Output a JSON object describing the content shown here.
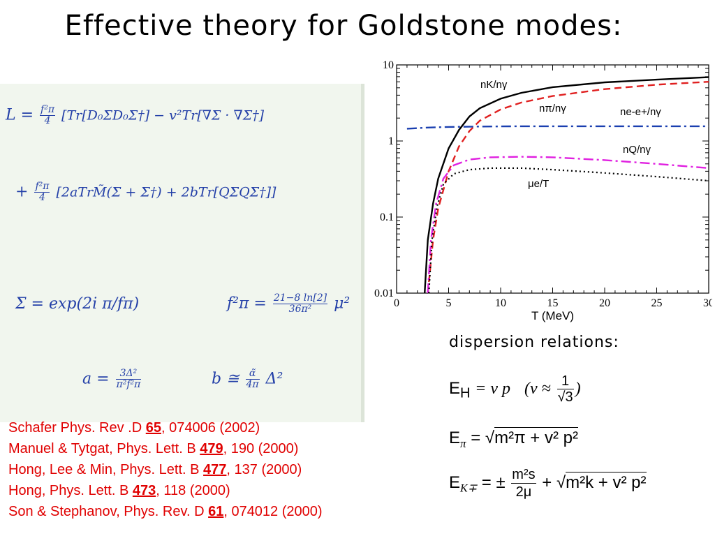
{
  "title": "Effective theory for Goldstone modes:",
  "equations": {
    "L_eq": "L =",
    "L_frac_num": "f²π",
    "L_frac_den": "4",
    "L_line1": "[Tr[D₀ΣD₀Σ†] − v²Tr[∇Σ · ∇Σ†]",
    "L_line2_prefix": "+",
    "L_line2": "[2aTrM̃(Σ + Σ†) + 2bTr[QΣQΣ†]]",
    "sigma": "Σ = exp(2i π/fπ)",
    "fpi_lhs": "f²π =",
    "fpi_num": "21−8 ln[2]",
    "fpi_den": "36π²",
    "fpi_tail": "μ²",
    "a_lhs": "a =",
    "a_num": "3Δ²",
    "a_den": "π²f²π",
    "b_lhs": "b ≅",
    "b_num": "α̃",
    "b_den": "4π",
    "b_tail": "Δ²"
  },
  "references": [
    {
      "pre": "Schafer Phys. Rev .D ",
      "vol": "65",
      "post": ", 074006 (2002)"
    },
    {
      "pre": "Manuel & Tytgat, Phys. Lett. B ",
      "vol": "479",
      "post": ", 190 (2000)"
    },
    {
      "pre": "Hong, Lee & Min, Phys. Lett. B ",
      "vol": "477",
      "post": ", 137 (2000)"
    },
    {
      "pre": "Hong, Phys. Lett. B ",
      "vol": "473",
      "post": ", 118 (2000)"
    },
    {
      "pre": "Son & Stephanov, Phys. Rev. D ",
      "vol": "61",
      "post": ", 074012 (2000)"
    }
  ],
  "chart_data": {
    "type": "line",
    "xlabel": "T (MeV)",
    "ylabel": "",
    "xlim": [
      0,
      30
    ],
    "ylim": [
      0.01,
      10
    ],
    "yscale": "log",
    "x_ticks": [
      "0",
      "5",
      "10",
      "15",
      "20",
      "25",
      "30"
    ],
    "y_ticks": [
      "0.01",
      "0.1",
      "1",
      "10"
    ],
    "series": [
      {
        "name": "n_K/n_γ",
        "label": "nK/nγ",
        "color": "#000000",
        "dash": "solid",
        "points": [
          [
            2.7,
            0.01
          ],
          [
            3.0,
            0.05
          ],
          [
            3.5,
            0.15
          ],
          [
            4.0,
            0.32
          ],
          [
            5.0,
            0.8
          ],
          [
            6.0,
            1.4
          ],
          [
            7.0,
            2.1
          ],
          [
            8.0,
            2.7
          ],
          [
            10.0,
            3.6
          ],
          [
            12.0,
            4.3
          ],
          [
            15.0,
            5.1
          ],
          [
            20.0,
            5.9
          ],
          [
            25.0,
            6.4
          ],
          [
            30.0,
            6.9
          ]
        ]
      },
      {
        "name": "n_π/n_γ",
        "label": "nπ/nγ",
        "color": "#e02020",
        "dash": "dashed",
        "points": [
          [
            3.0,
            0.01
          ],
          [
            3.5,
            0.05
          ],
          [
            4.0,
            0.13
          ],
          [
            5.0,
            0.4
          ],
          [
            6.0,
            0.85
          ],
          [
            7.0,
            1.35
          ],
          [
            8.0,
            1.85
          ],
          [
            10.0,
            2.6
          ],
          [
            12.0,
            3.2
          ],
          [
            15.0,
            3.9
          ],
          [
            20.0,
            4.8
          ],
          [
            25.0,
            5.5
          ],
          [
            30.0,
            6.0
          ]
        ]
      },
      {
        "name": "n_e-e+/n_γ",
        "label": "ne-e+/nγ",
        "color": "#1a3fb0",
        "dash": "dashdot",
        "points": [
          [
            1.0,
            1.45
          ],
          [
            3.0,
            1.5
          ],
          [
            5.0,
            1.53
          ],
          [
            8.0,
            1.55
          ],
          [
            12.0,
            1.56
          ],
          [
            20.0,
            1.56
          ],
          [
            30.0,
            1.56
          ]
        ]
      },
      {
        "name": "n_Q/n_γ",
        "label": "nQ/nγ",
        "color": "#e020e0",
        "dash": "dashdot",
        "points": [
          [
            3.0,
            0.01
          ],
          [
            3.3,
            0.05
          ],
          [
            3.8,
            0.15
          ],
          [
            4.5,
            0.32
          ],
          [
            5.5,
            0.48
          ],
          [
            7.0,
            0.57
          ],
          [
            9.0,
            0.61
          ],
          [
            12.0,
            0.62
          ],
          [
            15.0,
            0.61
          ],
          [
            20.0,
            0.56
          ],
          [
            25.0,
            0.5
          ],
          [
            30.0,
            0.44
          ]
        ]
      },
      {
        "name": "μ_e/T",
        "label": "μe/T",
        "color": "#000000",
        "dash": "dotted",
        "points": [
          [
            3.1,
            0.01
          ],
          [
            3.4,
            0.05
          ],
          [
            3.9,
            0.14
          ],
          [
            4.5,
            0.27
          ],
          [
            5.5,
            0.37
          ],
          [
            7.0,
            0.42
          ],
          [
            9.0,
            0.44
          ],
          [
            12.0,
            0.44
          ],
          [
            15.0,
            0.42
          ],
          [
            20.0,
            0.38
          ],
          [
            25.0,
            0.34
          ],
          [
            30.0,
            0.3
          ]
        ]
      }
    ]
  },
  "dispersion": {
    "heading": "dispersion relations:",
    "EH": "E",
    "EH_sub": "H",
    "EH_rhs": "= v  p",
    "EH_paren": "(v ≈",
    "EH_num": "1",
    "EH_den": "√3",
    "EH_close": ")",
    "Epi": "E",
    "Epi_sub": "π",
    "Epi_eq": "=",
    "Epi_root": "m²π + v² p²",
    "EK": "E",
    "EK_sub": "K∓",
    "EK_eq": "= ±",
    "EK_num": "m²s",
    "EK_den": "2μ",
    "EK_plus": "+",
    "EK_root": "m²k + v² p²"
  }
}
